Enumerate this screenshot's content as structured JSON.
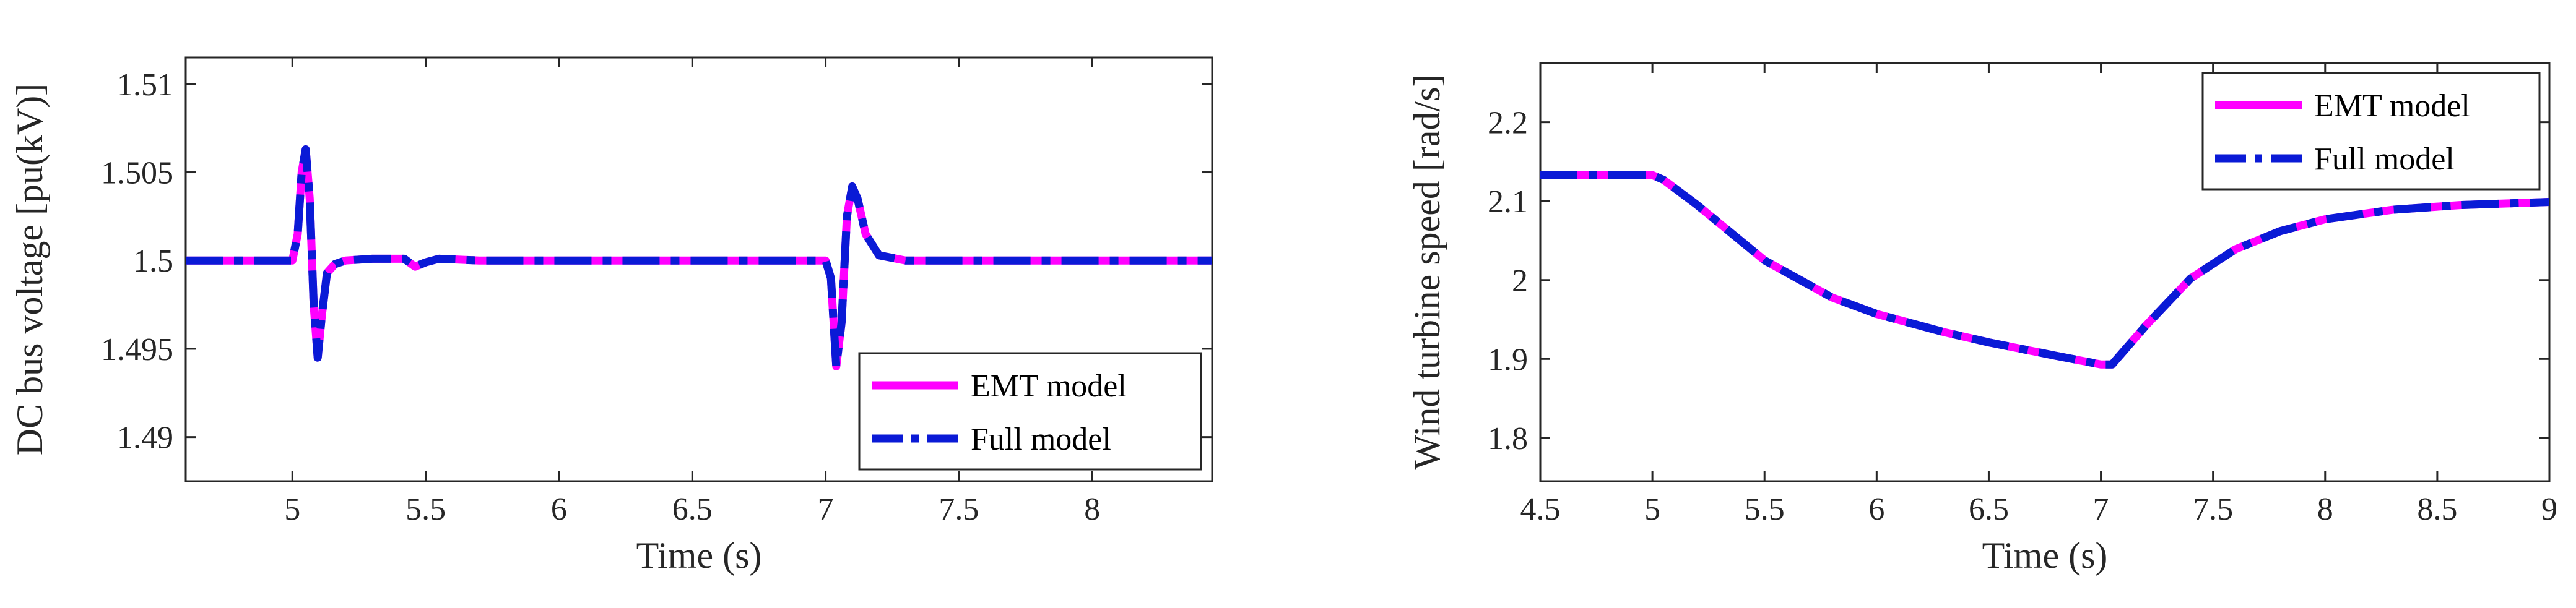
{
  "chart_data": [
    {
      "type": "line",
      "xlabel": "Time (s)",
      "ylabel": "DC bus voltage [pu(kV)]",
      "xlim": [
        4.6,
        8.45
      ],
      "ylim": [
        1.4875,
        1.5115
      ],
      "xticks": [
        5,
        5.5,
        6,
        6.5,
        7,
        7.5,
        8
      ],
      "xtick_labels": [
        "5",
        "5.5",
        "6",
        "6.5",
        "7",
        "7.5",
        "8"
      ],
      "yticks": [
        1.49,
        1.495,
        1.5,
        1.505,
        1.51
      ],
      "ytick_labels": [
        "1.49",
        "1.495",
        "1.5",
        "1.505",
        "1.51"
      ],
      "legend_position": "bottom-right",
      "grid": false,
      "series": [
        {
          "name": "EMT model",
          "color": "#ff00ff",
          "style": "solid",
          "x": [
            4.6,
            5.0,
            5.02,
            5.035,
            5.05,
            5.065,
            5.08,
            5.095,
            5.11,
            5.13,
            5.16,
            5.2,
            5.3,
            5.42,
            5.46,
            5.5,
            5.55,
            5.7,
            6.0,
            6.5,
            7.0,
            7.02,
            7.04,
            7.06,
            7.08,
            7.1,
            7.12,
            7.15,
            7.2,
            7.3,
            7.5,
            8.0,
            8.45
          ],
          "y": [
            1.5,
            1.5,
            1.5015,
            1.505,
            1.5063,
            1.5035,
            1.4975,
            1.4945,
            1.4968,
            1.4993,
            1.4998,
            1.5,
            1.5001,
            1.5001,
            1.49965,
            1.4999,
            1.5001,
            1.5,
            1.5,
            1.5,
            1.5,
            1.499,
            1.494,
            1.4965,
            1.5025,
            1.5042,
            1.5035,
            1.5015,
            1.5003,
            1.5,
            1.5,
            1.5,
            1.5
          ]
        },
        {
          "name": "Full model",
          "color": "#0a1ad6",
          "style": "dashdot",
          "x": [
            4.6,
            5.0,
            5.02,
            5.035,
            5.05,
            5.065,
            5.08,
            5.095,
            5.11,
            5.13,
            5.16,
            5.2,
            5.3,
            5.42,
            5.46,
            5.5,
            5.55,
            5.7,
            6.0,
            6.5,
            7.0,
            7.02,
            7.04,
            7.06,
            7.08,
            7.1,
            7.12,
            7.15,
            7.2,
            7.3,
            7.5,
            8.0,
            8.45
          ],
          "y": [
            1.5,
            1.5,
            1.5015,
            1.505,
            1.5063,
            1.5035,
            1.4975,
            1.4945,
            1.4968,
            1.4993,
            1.4998,
            1.5,
            1.5001,
            1.5001,
            1.49965,
            1.4999,
            1.5001,
            1.5,
            1.5,
            1.5,
            1.5,
            1.499,
            1.494,
            1.4965,
            1.5025,
            1.5042,
            1.5035,
            1.5015,
            1.5003,
            1.5,
            1.5,
            1.5,
            1.5
          ]
        }
      ]
    },
    {
      "type": "line",
      "xlabel": "Time (s)",
      "ylabel": "Wind turbine speed [rad/s]",
      "xlim": [
        4.5,
        9
      ],
      "ylim": [
        1.745,
        2.275
      ],
      "xticks": [
        4.5,
        5,
        5.5,
        6,
        6.5,
        7,
        7.5,
        8,
        8.5,
        9
      ],
      "xtick_labels": [
        "4.5",
        "5",
        "5.5",
        "6",
        "6.5",
        "7",
        "7.5",
        "8",
        "8.5",
        "9"
      ],
      "yticks": [
        1.8,
        1.9,
        2,
        2.1,
        2.2
      ],
      "ytick_labels": [
        "1.8",
        "1.9",
        "2",
        "2.1",
        "2.2"
      ],
      "legend_position": "top-right",
      "grid": false,
      "series": [
        {
          "name": "EMT model",
          "color": "#ff00ff",
          "style": "solid",
          "x": [
            4.5,
            5.0,
            5.05,
            5.2,
            5.5,
            5.8,
            6.0,
            6.3,
            6.5,
            6.8,
            7.0,
            7.05,
            7.2,
            7.4,
            7.6,
            7.8,
            8.0,
            8.3,
            8.6,
            9.0
          ],
          "y": [
            2.133,
            2.133,
            2.127,
            2.095,
            2.025,
            1.978,
            1.957,
            1.934,
            1.921,
            1.904,
            1.893,
            1.893,
            1.942,
            2.002,
            2.039,
            2.062,
            2.077,
            2.089,
            2.095,
            2.099
          ]
        },
        {
          "name": "Full model",
          "color": "#0a1ad6",
          "style": "dashdot",
          "x": [
            4.5,
            5.0,
            5.05,
            5.2,
            5.5,
            5.8,
            6.0,
            6.3,
            6.5,
            6.8,
            7.0,
            7.05,
            7.2,
            7.4,
            7.6,
            7.8,
            8.0,
            8.3,
            8.6,
            9.0
          ],
          "y": [
            2.133,
            2.133,
            2.127,
            2.095,
            2.025,
            1.978,
            1.957,
            1.934,
            1.921,
            1.904,
            1.893,
            1.893,
            1.942,
            2.002,
            2.039,
            2.062,
            2.077,
            2.089,
            2.095,
            2.099
          ]
        }
      ]
    }
  ]
}
